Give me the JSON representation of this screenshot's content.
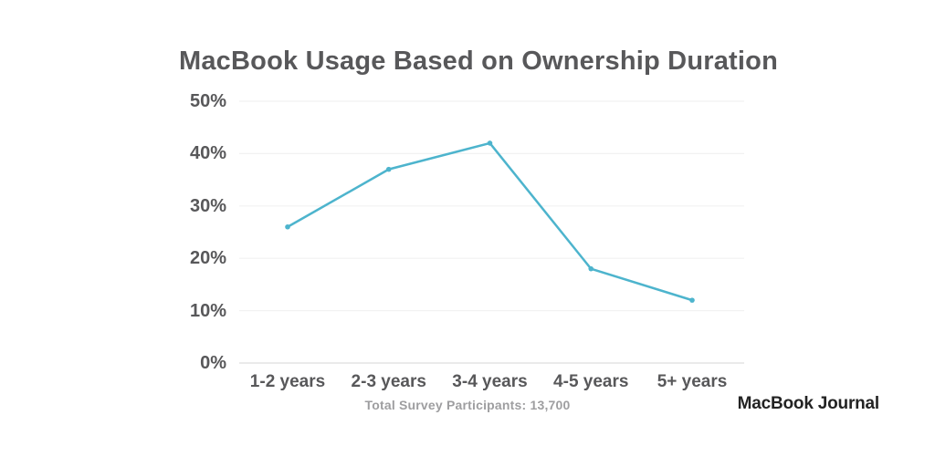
{
  "chart_data": {
    "type": "line",
    "title": "MacBook Usage Based on Ownership Duration",
    "categories": [
      "1-2 years",
      "2-3 years",
      "3-4 years",
      "4-5 years",
      "5+ years"
    ],
    "values": [
      26,
      37,
      42,
      18,
      12
    ],
    "unit": "%",
    "xlabel": "",
    "ylabel": "",
    "ylim": [
      0,
      50
    ],
    "y_ticks": [
      0,
      10,
      20,
      30,
      40,
      50
    ],
    "y_tick_labels": [
      "0%",
      "10%",
      "20%",
      "30%",
      "40%",
      "50%"
    ],
    "grid": "horizontal",
    "legend": "none",
    "series_name": "MacBook usage share"
  },
  "footer": {
    "footnote": "Total Survey Participants: 13,700",
    "brand": "MacBook Journal"
  },
  "colors": {
    "title_text": "#58585a",
    "axis_text": "#58585a",
    "line": "#4db4cd",
    "gridline": "#f2f2f2",
    "baseline": "#e3e3e3",
    "footnote_text": "#9e9ea0",
    "brand_text": "#232323",
    "background": "#ffffff"
  }
}
